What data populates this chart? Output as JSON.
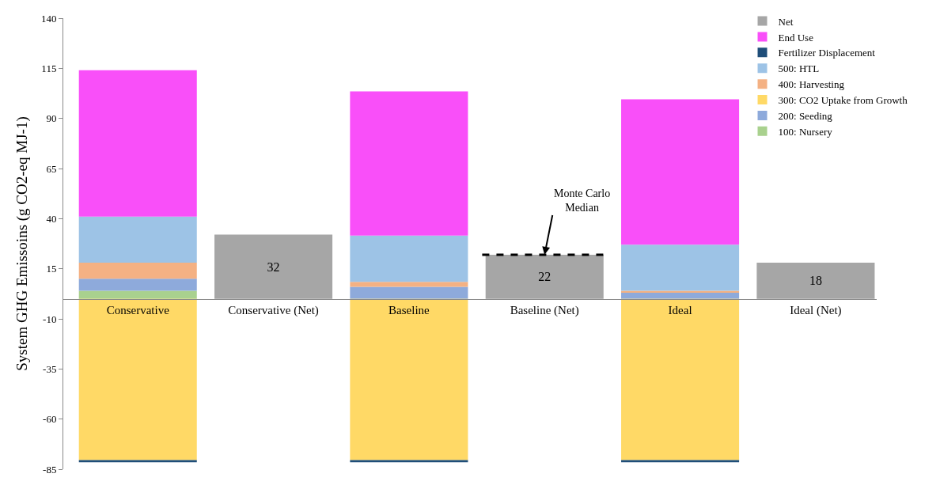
{
  "chart_data": {
    "type": "bar",
    "stacked": true,
    "ylabel": "System GHG Emissoins (g CO2-eq MJ-1)",
    "categories": [
      "Conservative",
      "Conservative (Net)",
      "Baseline",
      "Baseline (Net)",
      "Ideal",
      "Ideal (Net)"
    ],
    "series": [
      {
        "name": "100: Nursery",
        "color": "#a9d18e",
        "values": [
          4,
          null,
          null,
          null,
          null,
          null
        ]
      },
      {
        "name": "200: Seeding",
        "color": "#8eaadb",
        "values": [
          6,
          null,
          6,
          null,
          3,
          null
        ]
      },
      {
        "name": "300: CO2 Uptake from Growth",
        "color": "#ffd966",
        "values": [
          -80.5,
          null,
          -80.5,
          null,
          -80.5,
          null
        ]
      },
      {
        "name": "400: Harvesting",
        "color": "#f4b183",
        "values": [
          8,
          null,
          2.5,
          null,
          1,
          null
        ]
      },
      {
        "name": "500: HTL",
        "color": "#9dc3e6",
        "values": [
          23,
          null,
          23,
          null,
          23,
          null
        ]
      },
      {
        "name": "Fertilizer Displacement",
        "color": "#1f4e79",
        "values": [
          -1,
          null,
          -1,
          null,
          -1,
          null
        ]
      },
      {
        "name": "End Use",
        "color": "#f94ff9",
        "values": [
          73,
          null,
          72,
          null,
          72.5,
          null
        ]
      },
      {
        "name": "Net",
        "color": "#a6a6a6",
        "values": [
          null,
          32,
          null,
          22,
          null,
          18
        ],
        "value_labels": [
          null,
          "32",
          null,
          "22",
          null,
          "18"
        ]
      }
    ],
    "ylim": [
      -85,
      140
    ],
    "yticks": [
      -85,
      -60,
      -35,
      -10,
      15,
      40,
      65,
      90,
      115,
      140
    ],
    "grid": false,
    "legend": "top right",
    "ref_lines": [
      {
        "axis": "y",
        "value": 22,
        "color": "#000000",
        "line_style": "dashed"
      }
    ],
    "annotations": [
      {
        "text": "Monte Carlo Median",
        "x": "Baseline (Net)",
        "y": 22
      }
    ]
  }
}
